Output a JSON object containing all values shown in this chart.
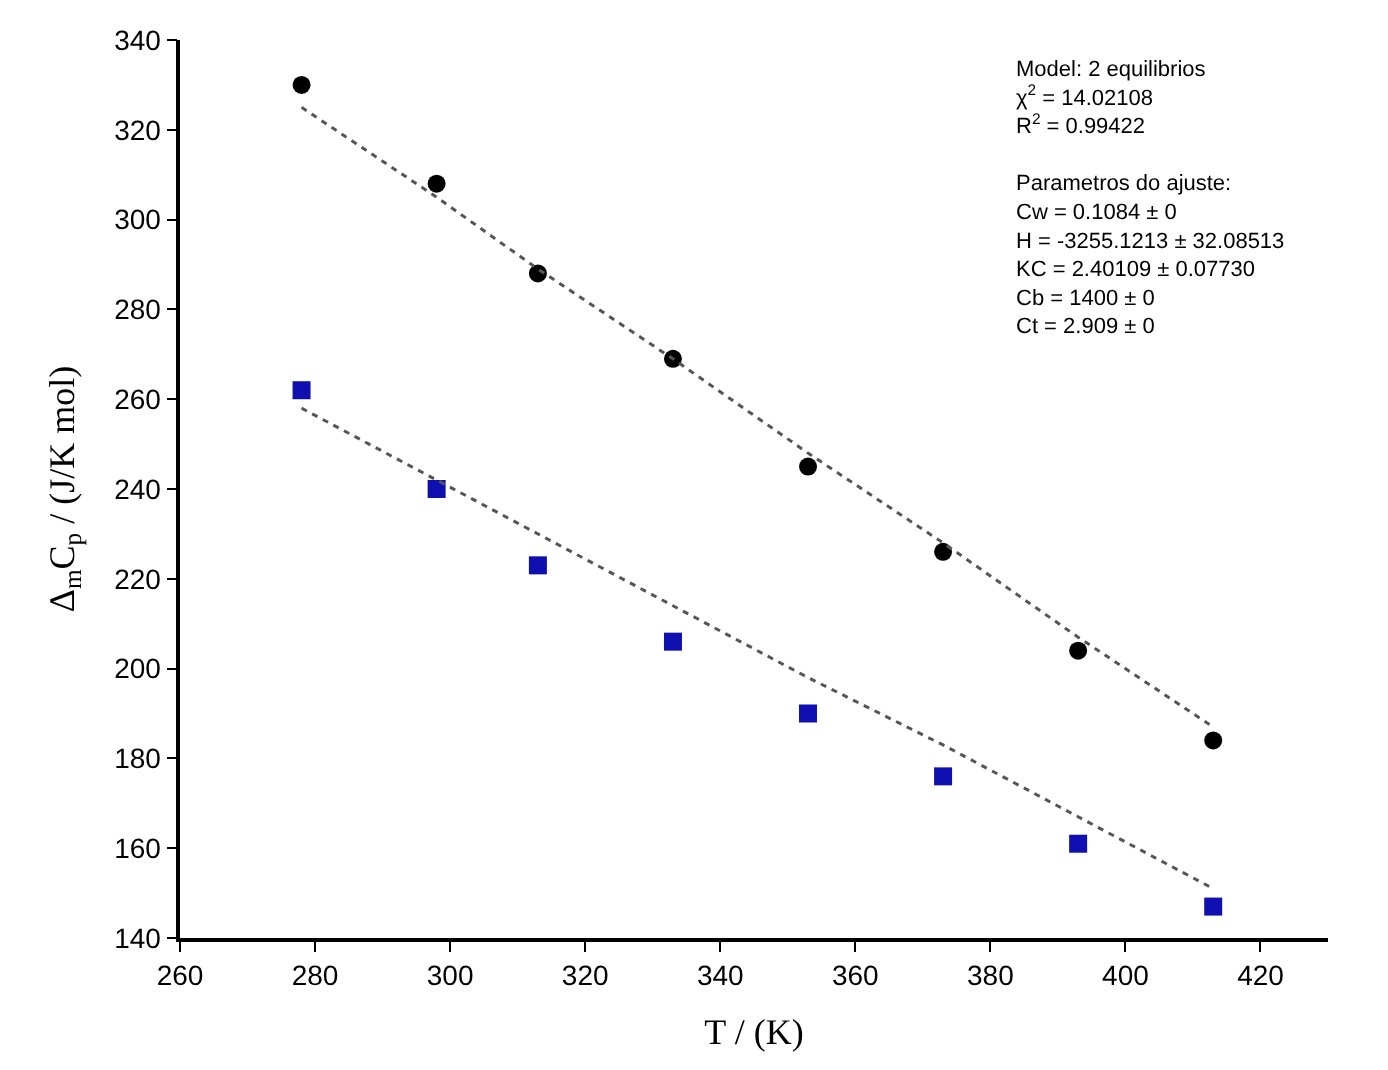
{
  "chart_data": {
    "type": "scatter",
    "xlabel": "T / (K)",
    "ylabel": "Δ$_{m}$C$_{p}$ / (J/K mol)",
    "x": [
      278,
      298,
      313,
      333,
      353,
      373,
      393,
      413
    ],
    "series": [
      {
        "color": "#000000",
        "marker": "circle",
        "values": [
          330,
          308,
          288,
          269,
          245,
          226,
          204,
          184
        ]
      },
      {
        "color": "#1010b0",
        "marker": "square",
        "values": [
          262,
          240,
          223,
          206,
          190,
          176,
          161,
          147
        ]
      },
      {
        "type": "line",
        "color": "#555555",
        "line_style": "dotted",
        "values": [
          325,
          305,
          289,
          269,
          248,
          228,
          207,
          187
        ]
      },
      {
        "type": "line",
        "color": "#555555",
        "line_style": "dotted",
        "values": [
          258,
          242,
          230,
          214,
          198,
          183,
          167,
          151
        ]
      }
    ],
    "xlim": [
      260,
      430
    ],
    "xticks": [
      260,
      280,
      300,
      320,
      340,
      360,
      380,
      400,
      420
    ],
    "ylim": [
      140,
      340
    ],
    "yticks": [
      140,
      160,
      180,
      200,
      220,
      240,
      260,
      280,
      300,
      320,
      340
    ],
    "annotations": [
      "Model: 2 equilibrios",
      "χ$^{2}$ = 14.02108",
      "R$^{2}$ = 0.99422",
      "Parametros do ajuste:",
      "Cw = 0.1084 ± 0",
      "H = -3255.1213 ± 32.08513",
      "KC = 2.40109 ± 0.07730",
      "Cb = 1400 ± 0",
      "Ct = 2.909 ± 0"
    ]
  }
}
